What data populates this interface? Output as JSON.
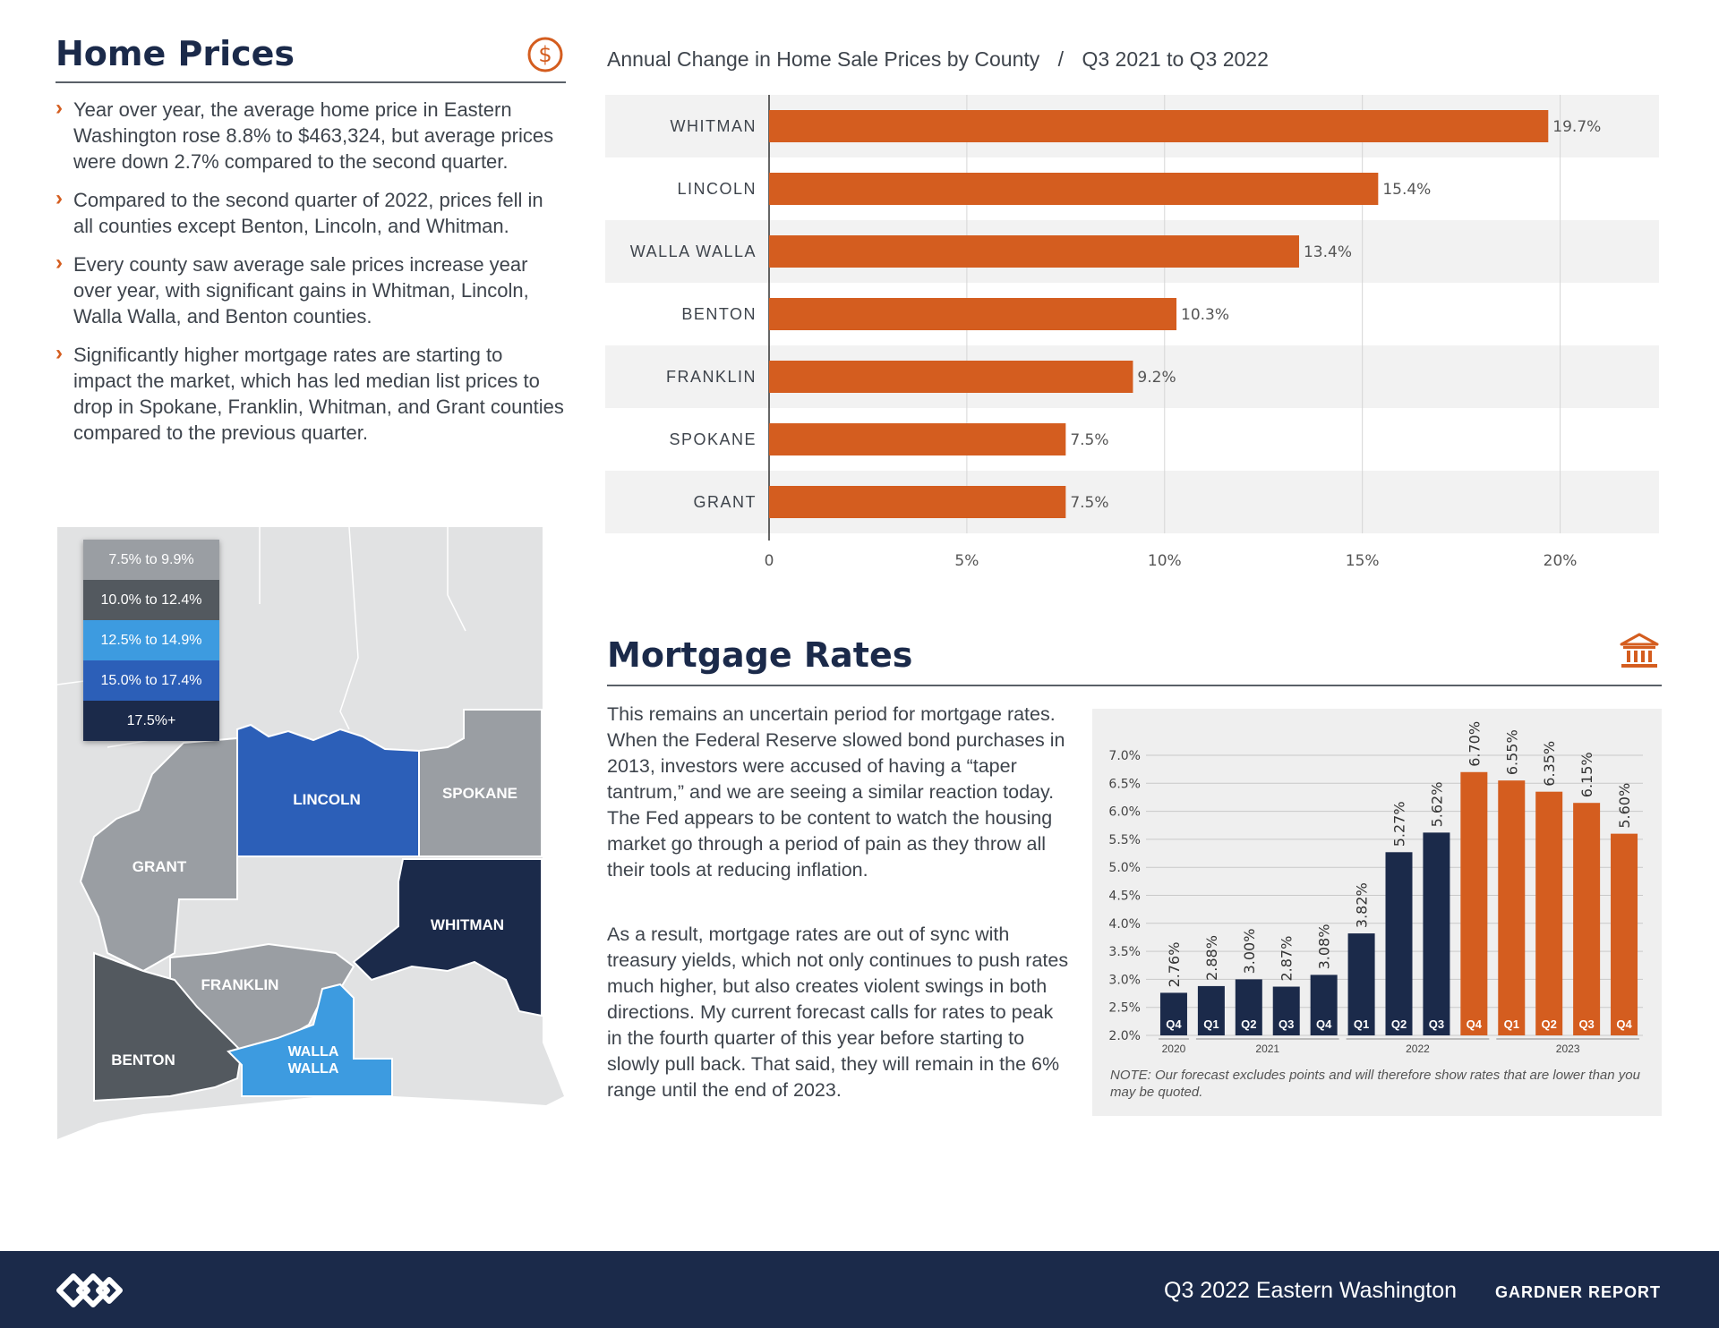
{
  "home_prices": {
    "title": "Home Prices",
    "icon": "dollar-circle-icon",
    "bullets": [
      "Year over year, the average home price in Eastern Washington rose 8.8% to $463,324, but average prices were down 2.7% compared to the second quarter.",
      "Compared to the second quarter of 2022, prices fell in all counties except Benton, Lincoln, and Whitman.",
      "Every county saw average sale prices increase year over year, with significant gains in Whitman, Lincoln, Walla Walla, and Benton counties.",
      "Significantly higher mortgage rates are starting to impact the market, which has led median list prices to drop in Spokane, Franklin, Whitman, and Grant counties compared to the previous quarter."
    ]
  },
  "map": {
    "legend": [
      {
        "label": "7.5% to 9.9%",
        "color": "#9a9ea3"
      },
      {
        "label": "10.0% to 12.4%",
        "color": "#53595f"
      },
      {
        "label": "12.5% to 14.9%",
        "color": "#3d9be0"
      },
      {
        "label": "15.0% to 17.4%",
        "color": "#2c5fb8"
      },
      {
        "label": "17.5%+",
        "color": "#1b2a4a"
      }
    ],
    "counties": {
      "lincoln": "LINCOLN",
      "spokane": "SPOKANE",
      "grant": "GRANT",
      "whitman": "WHITMAN",
      "franklin": "FRANKLIN",
      "benton": "BENTON",
      "walla1": "WALLA",
      "walla2": "WALLA"
    }
  },
  "mortgage": {
    "title": "Mortgage Rates",
    "icon": "bank-building-icon",
    "paragraphs": [
      "This remains an uncertain period for mortgage rates. When the Federal Reserve slowed bond purchases in 2013, investors were accused of having a “taper tantrum,” and we are seeing a similar reaction today. The Fed appears to be content to watch the housing market go through a period of pain as they throw all their tools at reducing inflation.",
      "As a result, mortgage rates are out of sync with treasury yields, which not only continues to push rates much higher, but also creates violent swings in both directions. My current forecast calls for rates to peak in the fourth quarter of this year before starting to slowly pull back. That said, they will remain in the 6% range until the end of 2023."
    ],
    "note": "NOTE: Our forecast excludes points and will therefore show rates that are lower than you may be quoted."
  },
  "chart_data": [
    {
      "type": "bar",
      "orientation": "horizontal",
      "title": "Annual Change in Home Sale Prices by County",
      "separator": "/",
      "subtitle": "Q3 2021 to Q3 2022",
      "categories": [
        "WHITMAN",
        "LINCOLN",
        "WALLA WALLA",
        "BENTON",
        "FRANKLIN",
        "SPOKANE",
        "GRANT"
      ],
      "values": [
        19.7,
        15.4,
        13.4,
        10.3,
        9.2,
        7.5,
        7.5
      ],
      "labels": [
        "19.7%",
        "15.4%",
        "13.4%",
        "10.3%",
        "9.2%",
        "7.5%",
        "7.5%"
      ],
      "xlim": [
        0,
        22.5
      ],
      "xticks": [
        0,
        5,
        10,
        15,
        20
      ],
      "xtick_labels": [
        "0",
        "5%",
        "10%",
        "15%",
        "20%"
      ],
      "bar_color": "#d45d1f",
      "grid": true
    },
    {
      "type": "bar",
      "title": "Mortgage Rates",
      "categories": [
        "Q4",
        "Q1",
        "Q2",
        "Q3",
        "Q4",
        "Q1",
        "Q2",
        "Q3",
        "Q4",
        "Q1",
        "Q2",
        "Q3",
        "Q4"
      ],
      "years": [
        {
          "label": "2020",
          "from": 0,
          "to": 0
        },
        {
          "label": "2021",
          "from": 1,
          "to": 4
        },
        {
          "label": "2022",
          "from": 5,
          "to": 8
        },
        {
          "label": "2023",
          "from": 9,
          "to": 12
        }
      ],
      "values": [
        2.76,
        2.88,
        3.0,
        2.87,
        3.08,
        3.82,
        5.27,
        5.62,
        6.7,
        6.55,
        6.35,
        6.15,
        5.6
      ],
      "labels": [
        "2.76%",
        "2.88%",
        "3.00%",
        "2.87%",
        "3.08%",
        "3.82%",
        "5.27%",
        "5.62%",
        "6.70%",
        "6.55%",
        "6.35%",
        "6.15%",
        "5.60%"
      ],
      "series_type": [
        "actual",
        "actual",
        "actual",
        "actual",
        "actual",
        "actual",
        "actual",
        "actual",
        "forecast",
        "forecast",
        "forecast",
        "forecast",
        "forecast"
      ],
      "colors": {
        "actual": "#1b2a4a",
        "forecast": "#d45d1f"
      },
      "ylim": [
        2.0,
        7.0
      ],
      "yticks": [
        2.0,
        2.5,
        3.0,
        3.5,
        4.0,
        4.5,
        5.0,
        5.5,
        6.0,
        6.5,
        7.0
      ],
      "ytick_labels": [
        "2.0%",
        "2.5%",
        "3.0%",
        "3.5%",
        "4.0%",
        "4.5%",
        "5.0%",
        "5.5%",
        "6.0%",
        "6.5%",
        "7.0%"
      ],
      "grid": true
    }
  ],
  "footer": {
    "logo": "windermere-logo-icon",
    "title": "Q3 2022  Eastern Washington",
    "brand": "GARDNER REPORT"
  }
}
